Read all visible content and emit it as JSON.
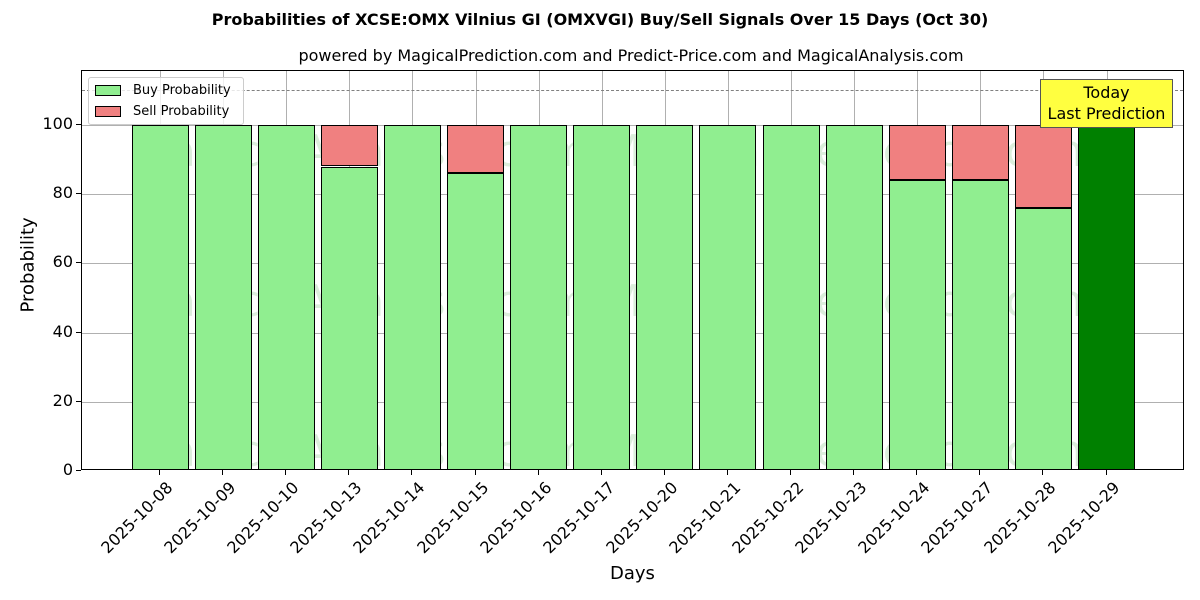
{
  "chart_data": {
    "type": "bar",
    "stacked": true,
    "title": "Probabilities of XCSE:OMX Vilnius GI (OMXVGI) Buy/Sell Signals Over 15 Days (Oct 30)",
    "subtitle": "powered by MagicalPrediction.com and Predict-Price.com and MagicalAnalysis.com",
    "xlabel": "Days",
    "ylabel": "Probability",
    "ylim": [
      0,
      115
    ],
    "yticks": [
      0,
      20,
      40,
      60,
      80,
      100
    ],
    "grid": true,
    "legend_position": "upper left",
    "categories": [
      "2025-10-08",
      "2025-10-09",
      "2025-10-10",
      "2025-10-13",
      "2025-10-14",
      "2025-10-15",
      "2025-10-16",
      "2025-10-17",
      "2025-10-20",
      "2025-10-21",
      "2025-10-22",
      "2025-10-23",
      "2025-10-24",
      "2025-10-27",
      "2025-10-28",
      "2025-10-29"
    ],
    "series": [
      {
        "name": "Buy Probability",
        "color": "#90ee90",
        "values": [
          100,
          100,
          100,
          88,
          100,
          86,
          100,
          100,
          100,
          100,
          100,
          100,
          84,
          84,
          76,
          100
        ]
      },
      {
        "name": "Sell Probability",
        "color": "#f08080",
        "values": [
          0,
          0,
          0,
          12,
          0,
          14,
          0,
          0,
          0,
          0,
          0,
          0,
          16,
          16,
          24,
          0
        ]
      }
    ],
    "highlight": {
      "category": "2025-10-29",
      "color": "#008000"
    },
    "reference_line": {
      "y": 110,
      "style": "dashed",
      "color": "#808080"
    },
    "annotation": {
      "text": "Today\nLast Prediction",
      "line1": "Today",
      "line2": "Last Prediction",
      "background": "#ffff40"
    },
    "watermarks": [
      "MagicalAnalysis.com",
      "MagicalPrediction.com"
    ]
  }
}
